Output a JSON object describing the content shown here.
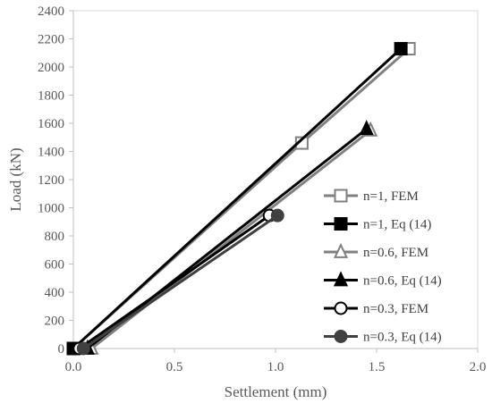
{
  "chart_data": {
    "type": "line",
    "xlabel": "Settlement (mm)",
    "ylabel": "Load (kN)",
    "xlim": [
      0.0,
      2.0
    ],
    "ylim": [
      0,
      2400
    ],
    "xticks": [
      0.0,
      0.5,
      1.0,
      1.5,
      2.0
    ],
    "xtick_labels": [
      "0.0",
      "0.5",
      "1.0",
      "1.5",
      "2.0"
    ],
    "yticks": [
      0,
      200,
      400,
      600,
      800,
      1000,
      1200,
      1400,
      1600,
      1800,
      2000,
      2200,
      2400
    ],
    "ytick_labels": [
      "0",
      "200",
      "400",
      "600",
      "800",
      "1000",
      "1200",
      "1400",
      "1600",
      "1800",
      "2000",
      "2200",
      "2400"
    ],
    "grid": false,
    "legend_position": "right",
    "series": [
      {
        "name": "n=1, FEM",
        "color": "#808080",
        "marker": "square-open",
        "x": [
          0.0,
          1.13,
          1.66
        ],
        "y": [
          0,
          1460,
          2130
        ]
      },
      {
        "name": "n=1, Eq (14)",
        "color": "#000000",
        "marker": "square-filled",
        "x": [
          0.0,
          1.62
        ],
        "y": [
          0,
          2130
        ]
      },
      {
        "name": "n=0.6, FEM",
        "color": "#808080",
        "marker": "triangle-open",
        "x": [
          0.09,
          1.47
        ],
        "y": [
          0,
          1550
        ]
      },
      {
        "name": "n=0.6, Eq (14)",
        "color": "#000000",
        "marker": "triangle-filled",
        "x": [
          0.07,
          1.45
        ],
        "y": [
          0,
          1560
        ]
      },
      {
        "name": "n=0.3, FEM",
        "color": "#000000",
        "marker": "circle-open",
        "x": [
          0.03,
          0.97
        ],
        "y": [
          0,
          945
        ]
      },
      {
        "name": "n=0.3, Eq (14)",
        "color": "#404040",
        "marker": "circle-filled",
        "x": [
          0.05,
          1.01
        ],
        "y": [
          0,
          945
        ]
      }
    ]
  }
}
